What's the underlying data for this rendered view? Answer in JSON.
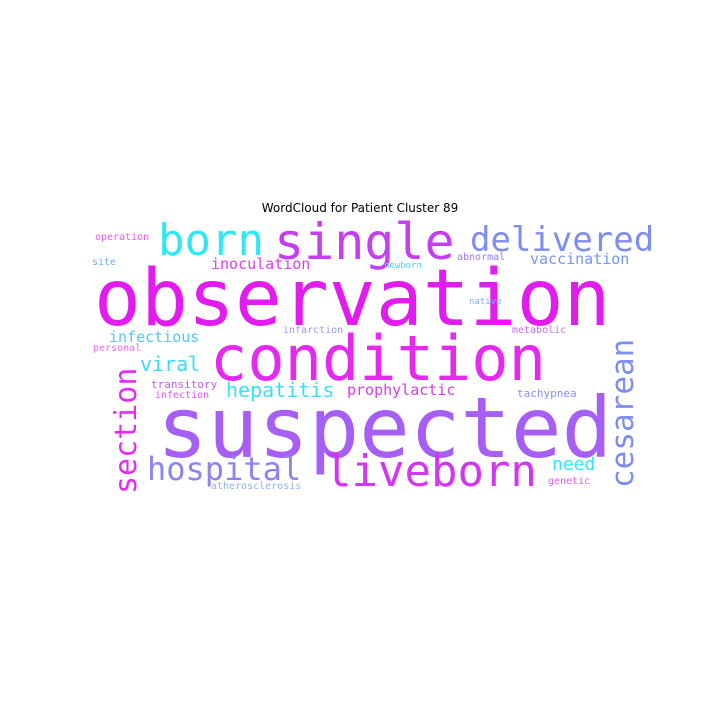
{
  "title": "WordCloud for Patient Cluster 89",
  "words": {
    "observation": {
      "text": "observation",
      "color": "#e21cf0"
    },
    "condition": {
      "text": "condition",
      "color": "#e629f2"
    },
    "suspected": {
      "text": "suspected",
      "color": "#a65ef5"
    },
    "born": {
      "text": "born",
      "color": "#2ee8f5"
    },
    "single": {
      "text": "single",
      "color": "#c53ff2"
    },
    "delivered": {
      "text": "delivered",
      "color": "#7f8df0"
    },
    "liveborn": {
      "text": "liveborn",
      "color": "#d336f2"
    },
    "hospital": {
      "text": "hospital",
      "color": "#8d84f0"
    },
    "section": {
      "text": "section",
      "color": "#e22ef0"
    },
    "cesarean": {
      "text": "cesarean",
      "color": "#7d8ef0"
    },
    "hepatitis": {
      "text": "hepatitis",
      "color": "#3ae0f5"
    },
    "viral": {
      "text": "viral",
      "color": "#38dcf5"
    },
    "need": {
      "text": "need",
      "color": "#2ee8f5"
    },
    "inoculation": {
      "text": "inoculation",
      "color": "#dd3cf0"
    },
    "vaccination": {
      "text": "vaccination",
      "color": "#7a94f0"
    },
    "prophylactic": {
      "text": "prophylactic",
      "color": "#d63cf0"
    },
    "infectious": {
      "text": "infectious",
      "color": "#52c8f5"
    },
    "tachypnea": {
      "text": "tachypnea",
      "color": "#8690f0"
    },
    "transitory": {
      "text": "transitory",
      "color": "#c25cf0"
    },
    "infection": {
      "text": "infection",
      "color": "#d856f0"
    },
    "operation": {
      "text": "operation",
      "color": "#e85af0"
    },
    "site": {
      "text": "site",
      "color": "#6aaef5"
    },
    "abnormal": {
      "text": "abnormal",
      "color": "#9a7cf0"
    },
    "newborn": {
      "text": "newborn",
      "color": "#4ad6f5"
    },
    "native": {
      "text": "native",
      "color": "#7bb0f5"
    },
    "metabolic": {
      "text": "metabolic",
      "color": "#c86cf0"
    },
    "infarction": {
      "text": "infarction",
      "color": "#9a96f0"
    },
    "personal": {
      "text": "personal",
      "color": "#e86af0"
    },
    "atherosclerosis": {
      "text": "atherosclerosis",
      "color": "#8cb4f5"
    },
    "genetic": {
      "text": "genetic",
      "color": "#e05cf0"
    }
  }
}
